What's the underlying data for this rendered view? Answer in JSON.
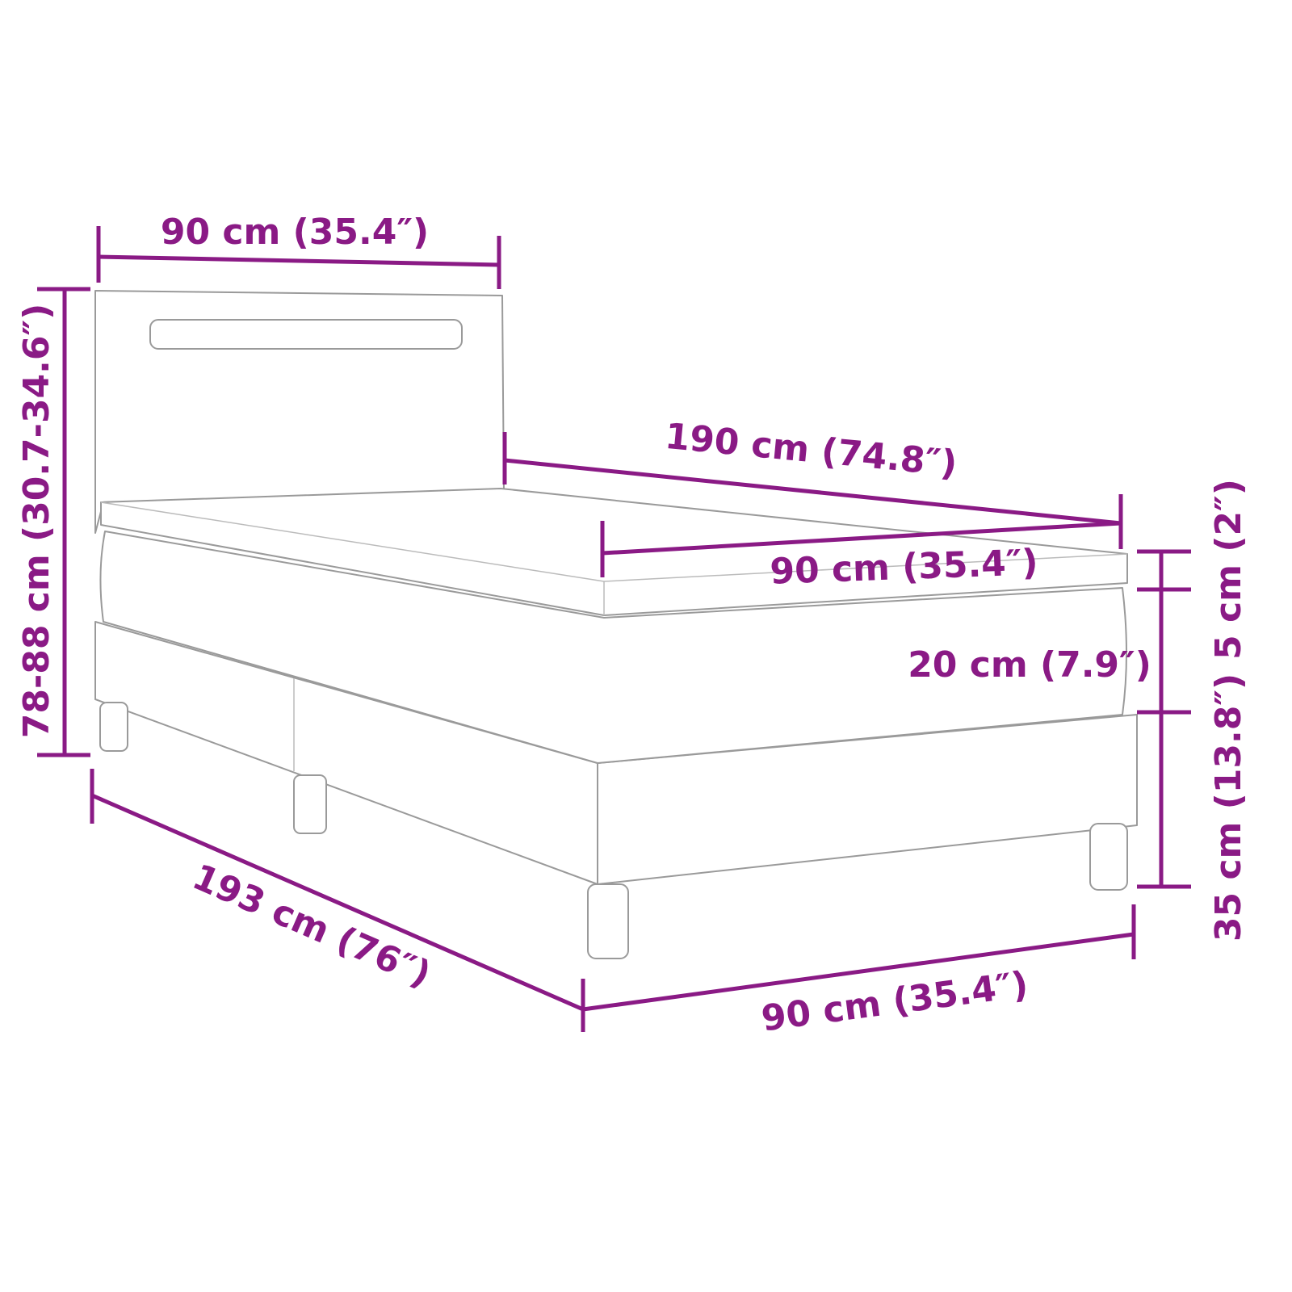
{
  "diagram": {
    "subject": "box spring bed with mattress topper",
    "accent_color": "#8a1a85",
    "labels": {
      "headboard_width": "90 cm (35.4″)",
      "headboard_height": "78-88 cm (30.7-34.6″)",
      "mattress_length": "190 cm (74.8″)",
      "mattress_width": "90 cm (35.4″)",
      "topper_height": "5 cm (2″)",
      "mattress_height": "20 cm (7.9″)",
      "base_height": "35 cm (13.8″)",
      "total_length": "193 cm (76″)",
      "total_width": "90 cm (35.4″)"
    }
  }
}
